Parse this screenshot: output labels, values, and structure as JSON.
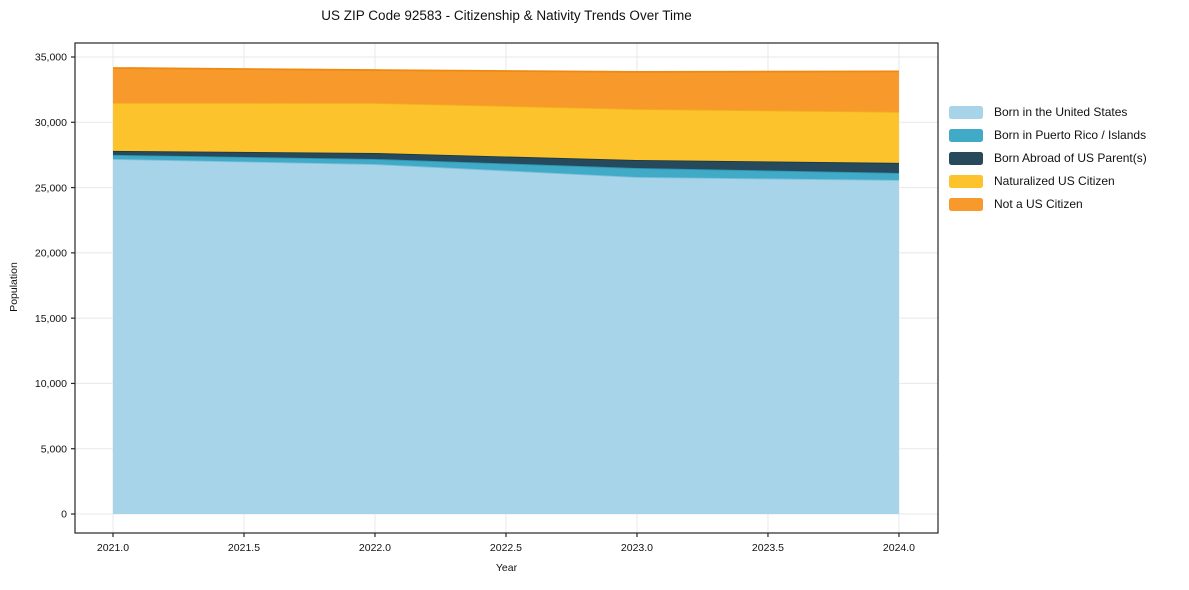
{
  "title": "US ZIP Code 92583 - Citizenship & Nativity Trends Over Time",
  "chart_data": {
    "type": "area",
    "stacked": true,
    "title": "US ZIP Code 92583 - Citizenship & Nativity Trends Over Time",
    "xlabel": "Year",
    "ylabel": "Population",
    "x": [
      2021,
      2022,
      2023,
      2024
    ],
    "series": [
      {
        "name": "Born in the United States",
        "color": "#a7d4e8",
        "edge_color": "#7fc0dc",
        "values": [
          27190,
          26800,
          25810,
          25580
        ]
      },
      {
        "name": "Born in Puerto Rico / Islands",
        "color": "#41abc7",
        "edge_color": "#2d96b2",
        "values": [
          310,
          390,
          690,
          540
        ]
      },
      {
        "name": "Born Abroad of US Parent(s)",
        "color": "#264a5c",
        "edge_color": "#1b3947",
        "values": [
          310,
          460,
          610,
          770
        ]
      },
      {
        "name": "Naturalized US Citizen",
        "color": "#fdc32d",
        "edge_color": "#f2b018",
        "values": [
          3680,
          3830,
          3910,
          3910
        ]
      },
      {
        "name": "Not a US Citizen",
        "color": "#f8992b",
        "edge_color": "#ee8a12",
        "values": [
          2670,
          2520,
          2840,
          3100
        ]
      }
    ],
    "totals": [
      34160,
      34000,
      33860,
      33900
    ],
    "x_ticks": [
      "2021.0",
      "2021.5",
      "2022.0",
      "2022.5",
      "2023.0",
      "2023.5",
      "2024.0"
    ],
    "x_tick_values": [
      2021,
      2021.5,
      2022,
      2022.5,
      2023,
      2023.5,
      2024
    ],
    "y_ticks": [
      "0",
      "5,000",
      "10,000",
      "15,000",
      "20,000",
      "25,000",
      "30,000",
      "35,000"
    ],
    "y_tick_values": [
      0,
      5000,
      10000,
      15000,
      20000,
      25000,
      30000,
      35000
    ],
    "xlim": [
      2020.855,
      2024.149
    ],
    "ylim": [
      -1455,
      36072
    ],
    "grid": true,
    "grid_color": "#e8e8e8",
    "spine_color": "#262626",
    "tick_label_color": "#111111",
    "legend_position": "right",
    "background_color": "#ffffff"
  }
}
